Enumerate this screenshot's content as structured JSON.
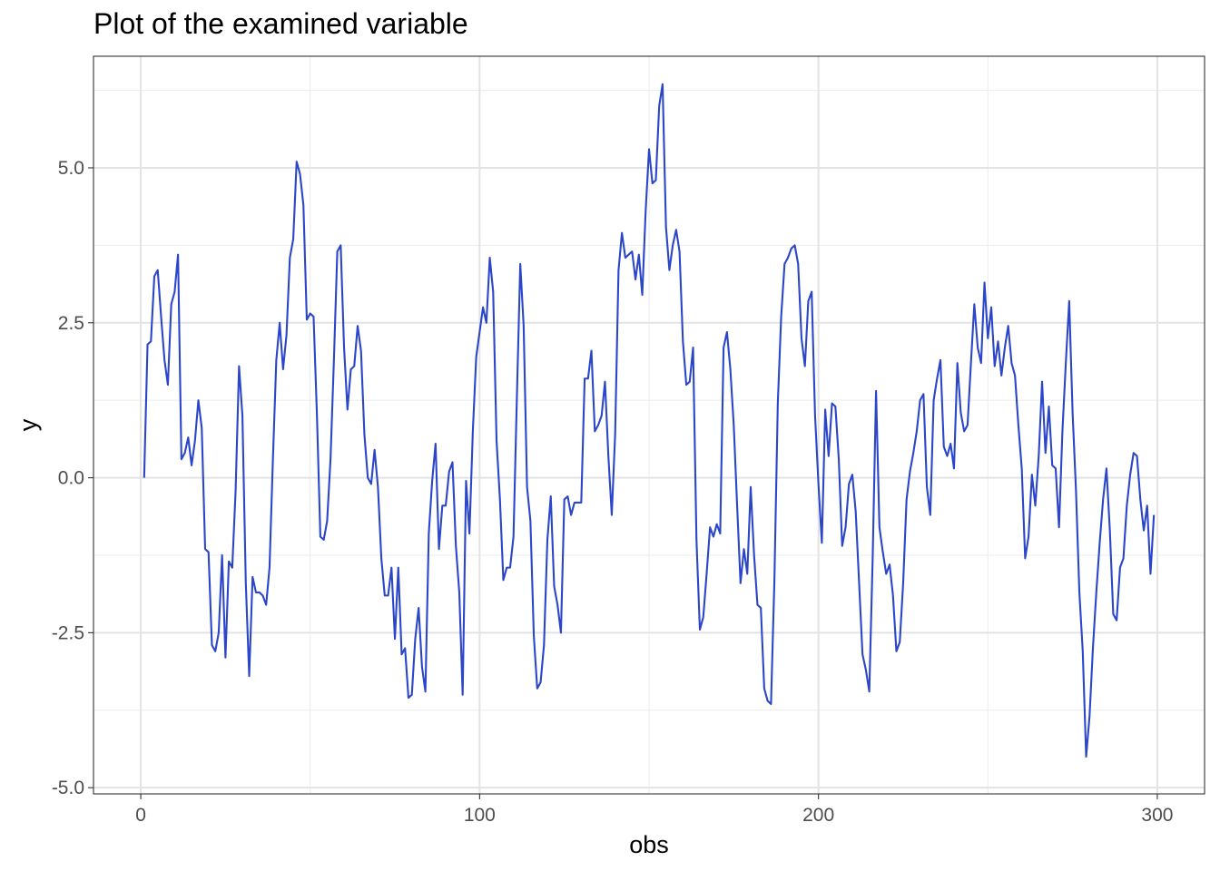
{
  "chart_data": {
    "type": "line",
    "title": "Plot of the examined variable",
    "xlabel": "obs",
    "ylabel": "y",
    "xlim": [
      -13.95,
      313.95
    ],
    "ylim": [
      -5.1,
      6.8
    ],
    "x_ticks": [
      0,
      100,
      200,
      300
    ],
    "x_tick_labels": [
      "0",
      "100",
      "200",
      "300"
    ],
    "y_ticks": [
      -5.0,
      -2.5,
      0.0,
      2.5,
      5.0
    ],
    "y_tick_labels": [
      "-5.0",
      "-2.5",
      "0.0",
      "2.5",
      "5.0"
    ],
    "grid": true,
    "line_color": "#2B46C9",
    "series": [
      {
        "x_start": 1,
        "values": [
          0.0,
          2.15,
          2.2,
          3.25,
          3.35,
          2.6,
          1.9,
          1.5,
          2.8,
          3.0,
          3.6,
          0.3,
          0.4,
          0.65,
          0.2,
          0.6,
          1.25,
          0.8,
          -1.15,
          -1.2,
          -2.7,
          -2.8,
          -2.5,
          -1.25,
          -2.9,
          -1.35,
          -1.45,
          -0.2,
          1.8,
          1.0,
          -1.7,
          -3.2,
          -1.6,
          -1.85,
          -1.85,
          -1.9,
          -2.05,
          -1.45,
          0.3,
          1.9,
          2.5,
          1.75,
          2.3,
          3.55,
          3.85,
          5.1,
          4.9,
          4.4,
          2.55,
          2.65,
          2.6,
          1.0,
          -0.95,
          -1.0,
          -0.7,
          0.3,
          1.9,
          3.65,
          3.75,
          2.1,
          1.1,
          1.75,
          1.8,
          2.45,
          2.05,
          0.7,
          0.0,
          -0.1,
          0.45,
          -0.15,
          -1.3,
          -1.9,
          -1.9,
          -1.45,
          -2.6,
          -1.45,
          -2.85,
          -2.75,
          -3.55,
          -3.5,
          -2.6,
          -2.1,
          -3.05,
          -3.45,
          -0.9,
          -0.05,
          0.55,
          -1.15,
          -0.45,
          -0.45,
          0.1,
          0.25,
          -1.1,
          -1.85,
          -3.5,
          -0.05,
          -0.9,
          0.75,
          1.95,
          2.35,
          2.75,
          2.5,
          3.55,
          3.0,
          0.6,
          -0.35,
          -1.65,
          -1.45,
          -1.45,
          -0.95,
          1.3,
          3.45,
          2.45,
          -0.15,
          -0.7,
          -2.55,
          -3.4,
          -3.3,
          -2.7,
          -1.0,
          -0.3,
          -1.75,
          -2.05,
          -2.5,
          -0.35,
          -0.3,
          -0.6,
          -0.4,
          -0.4,
          -0.4,
          1.6,
          1.6,
          2.05,
          0.75,
          0.85,
          1.0,
          1.55,
          0.35,
          -0.6,
          0.7,
          3.35,
          3.95,
          3.55,
          3.6,
          3.65,
          3.2,
          3.6,
          2.95,
          4.3,
          5.3,
          4.75,
          4.8,
          6.0,
          6.35,
          4.05,
          3.35,
          3.75,
          4.0,
          3.65,
          2.2,
          1.5,
          1.55,
          2.1,
          -1.0,
          -2.45,
          -2.25,
          -1.55,
          -0.8,
          -0.95,
          -0.75,
          -0.9,
          2.1,
          2.35,
          1.75,
          0.85,
          -0.45,
          -1.7,
          -1.15,
          -1.55,
          -0.15,
          -1.25,
          -2.05,
          -2.1,
          -3.4,
          -3.6,
          -3.65,
          -1.65,
          1.2,
          2.6,
          3.45,
          3.55,
          3.7,
          3.75,
          3.45,
          2.25,
          1.8,
          2.85,
          3.0,
          1.0,
          -0.1,
          -1.05,
          1.1,
          0.35,
          1.2,
          1.15,
          0.3,
          -1.1,
          -0.8,
          -0.1,
          0.05,
          -0.55,
          -1.7,
          -2.85,
          -3.1,
          -3.45,
          -1.3,
          1.4,
          -0.8,
          -1.2,
          -1.55,
          -1.4,
          -1.9,
          -2.8,
          -2.65,
          -1.7,
          -0.35,
          0.1,
          0.4,
          0.75,
          1.25,
          1.35,
          -0.15,
          -0.6,
          1.25,
          1.6,
          1.9,
          0.5,
          0.35,
          0.55,
          0.15,
          1.85,
          1.05,
          0.75,
          0.85,
          1.85,
          2.8,
          2.1,
          1.85,
          3.15,
          2.25,
          2.75,
          1.8,
          2.2,
          1.65,
          2.1,
          2.45,
          1.85,
          1.65,
          0.85,
          0.15,
          -1.3,
          -0.95,
          0.05,
          -0.45,
          0.35,
          1.55,
          0.4,
          1.15,
          0.2,
          0.15,
          -0.8,
          0.75,
          1.85,
          2.85,
          1.05,
          -0.2,
          -1.85,
          -2.8,
          -4.5,
          -3.85,
          -2.75,
          -1.85,
          -1.05,
          -0.35,
          0.15,
          -0.85,
          -2.2,
          -2.3,
          -1.45,
          -1.3,
          -0.45,
          0.05,
          0.4,
          0.35,
          -0.35,
          -0.85,
          -0.45,
          -1.55,
          -0.6
        ]
      }
    ]
  }
}
